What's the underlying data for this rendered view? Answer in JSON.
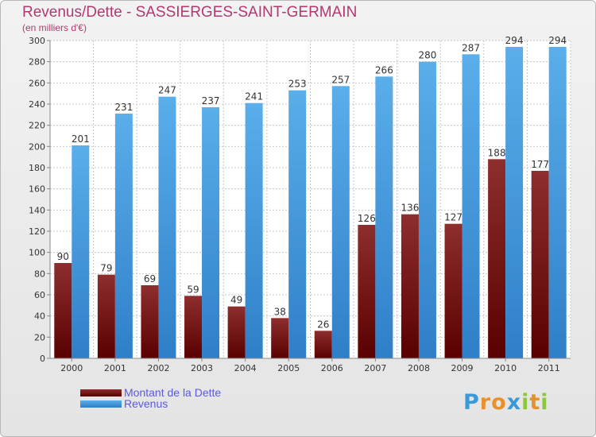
{
  "title": "Revenus/Dette - SASSIERGES-SAINT-GERMAIN",
  "subtitle": "(en milliers d'€)",
  "chart_data": {
    "type": "bar",
    "categories": [
      "2000",
      "2001",
      "2002",
      "2003",
      "2004",
      "2005",
      "2006",
      "2007",
      "2008",
      "2009",
      "2010",
      "2011"
    ],
    "series": [
      {
        "name": "Montant de la Dette",
        "color": "#7a1f1f",
        "values": [
          90,
          79,
          69,
          59,
          49,
          38,
          26,
          126,
          136,
          127,
          188,
          177
        ]
      },
      {
        "name": "Revenus",
        "color": "#4aa3e6",
        "values": [
          201,
          231,
          247,
          237,
          241,
          253,
          257,
          266,
          280,
          287,
          294,
          294
        ]
      }
    ],
    "ylim": [
      0,
      300
    ],
    "yticks": [
      0,
      20,
      40,
      60,
      80,
      100,
      120,
      140,
      160,
      180,
      200,
      220,
      240,
      260,
      280,
      300
    ],
    "grid": true,
    "legend": "bottom-left"
  },
  "legend": {
    "debt_label": "Montant de la Dette",
    "revenue_label": "Revenus"
  },
  "logo": {
    "letters": [
      "P",
      "r",
      "o",
      "x",
      "i",
      "t",
      "i"
    ],
    "colors": [
      "#3a9ad9",
      "#e8902a",
      "#e8902a",
      "#3a9ad9",
      "#8cc63f",
      "#e8902a",
      "#8cc63f"
    ]
  }
}
